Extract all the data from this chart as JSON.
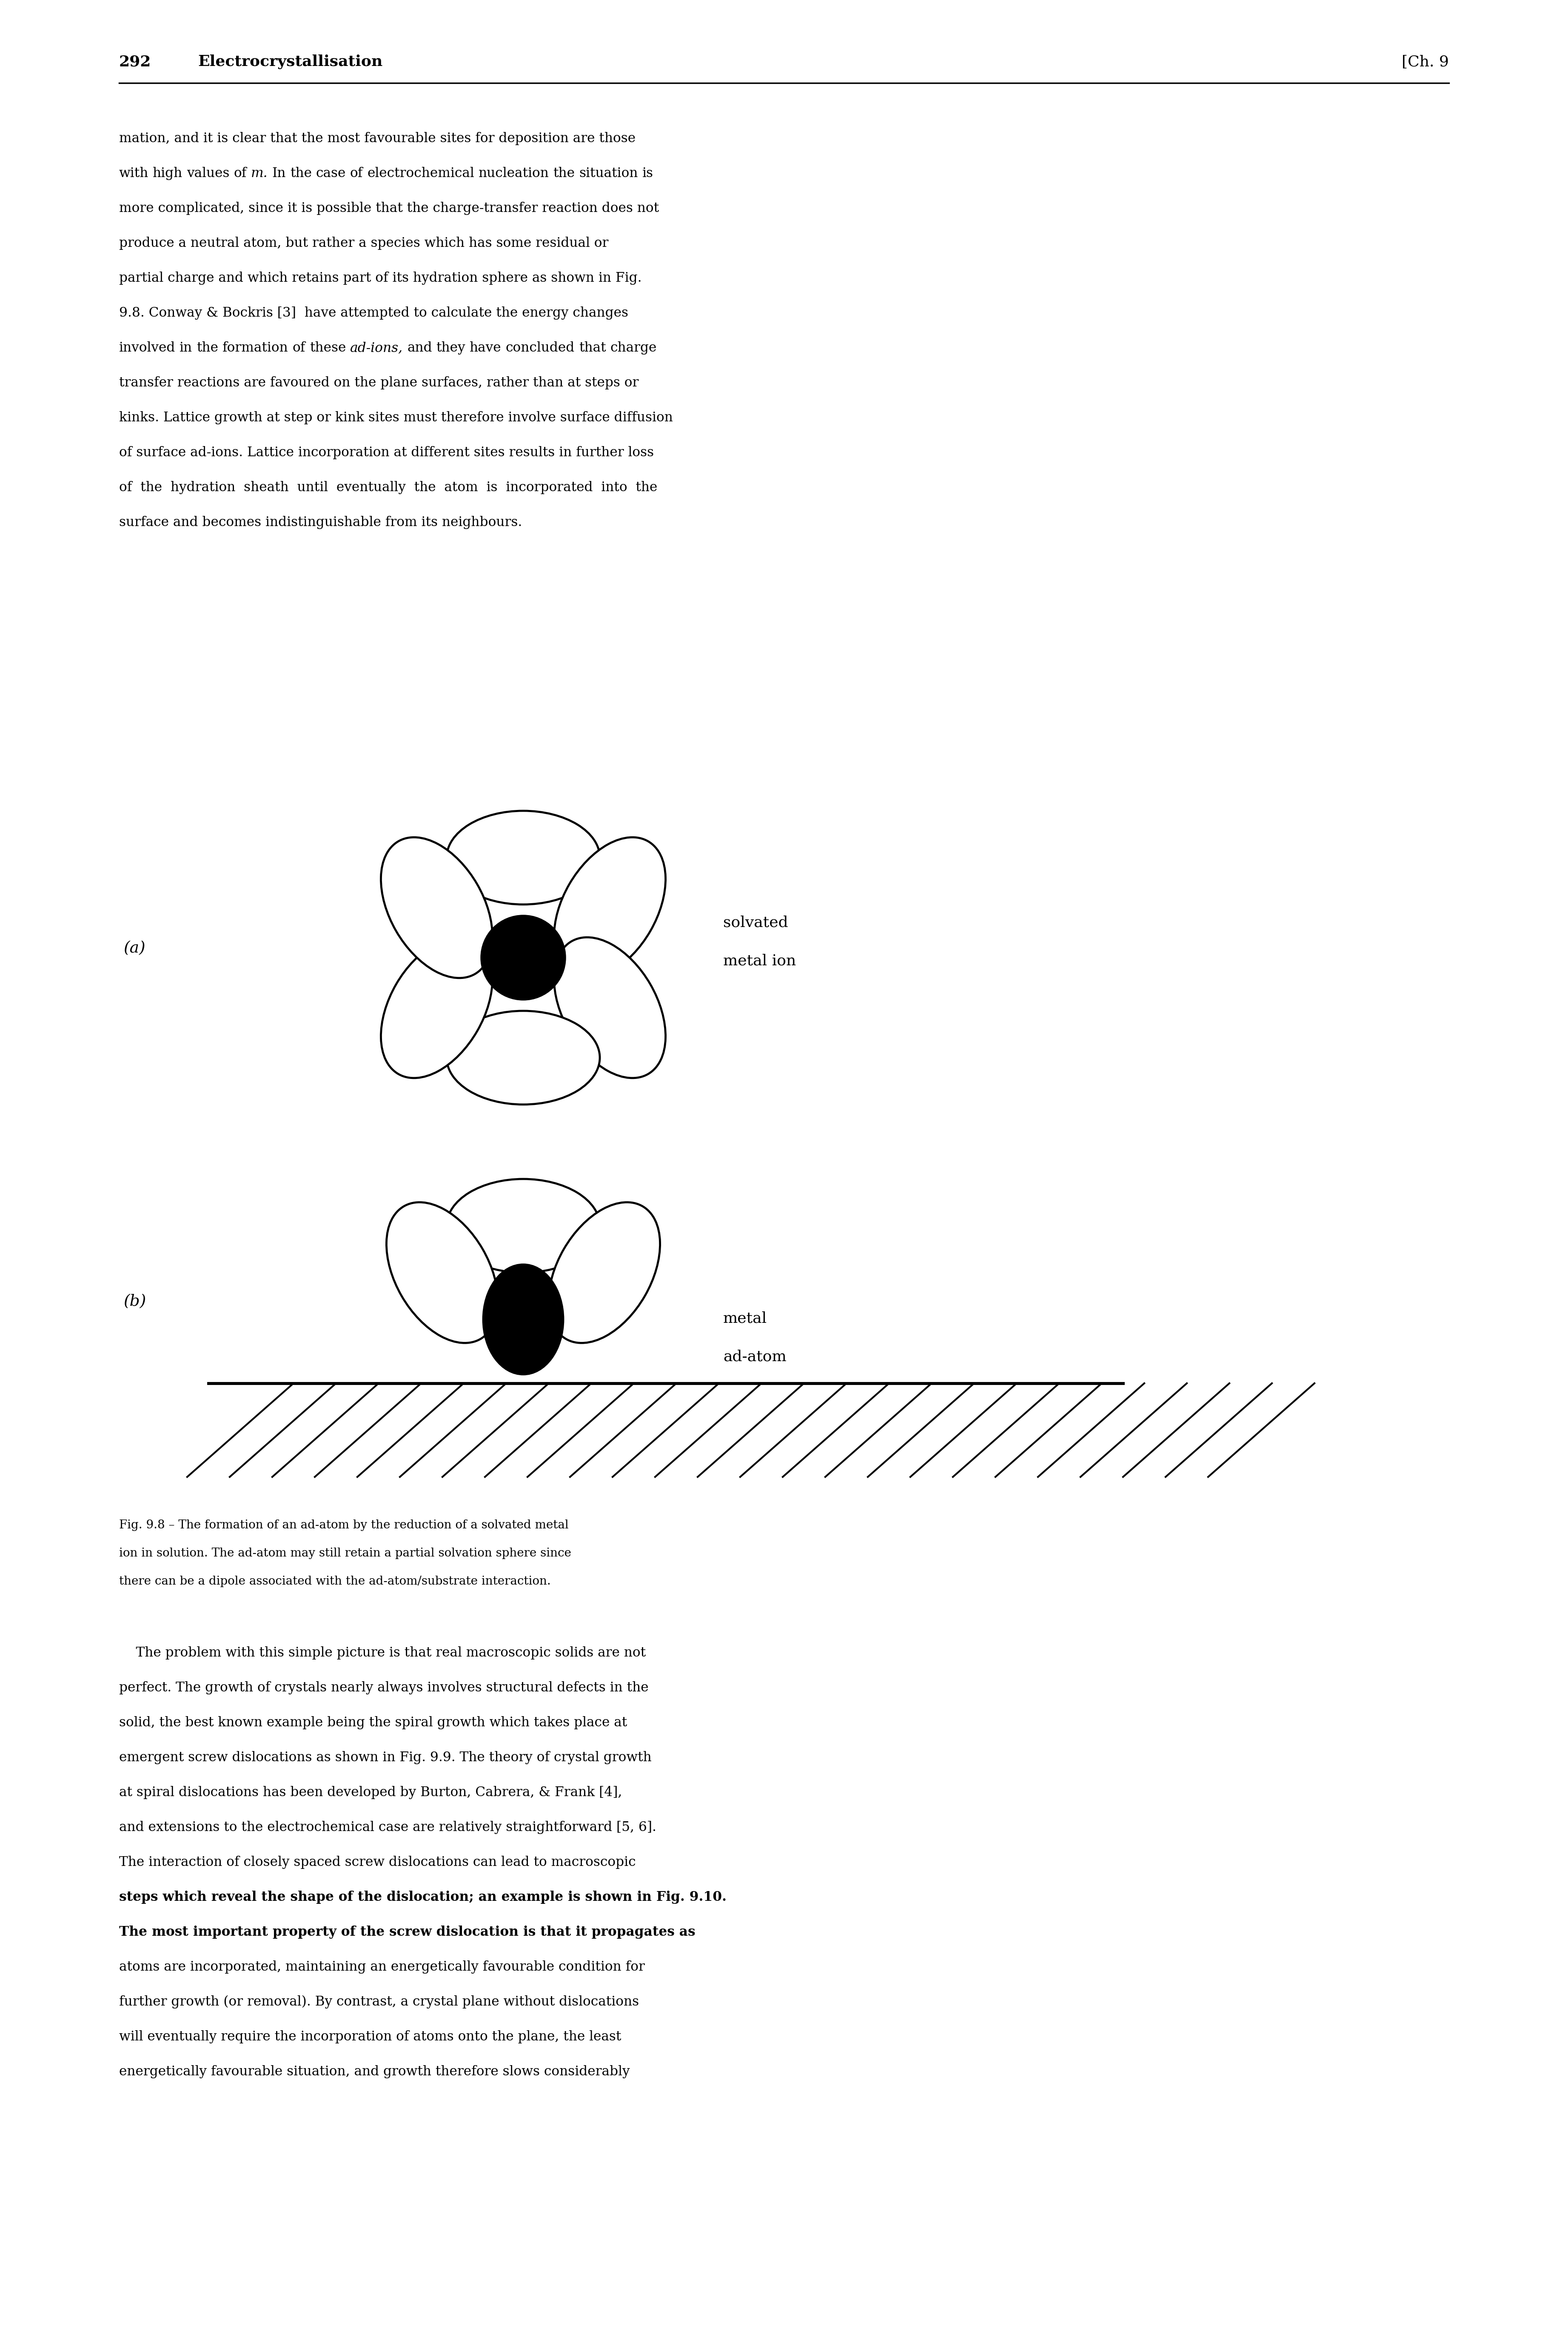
{
  "page_number": "292",
  "header_left": "Electrocrystallisation",
  "header_right": "[Ch. 9",
  "body_lines_1": [
    "mation, and it is clear that the most favourable sites for deposition are those",
    "with high values of __m__. In the case of electrochemical nucleation the situation is",
    "more complicated, since it is possible that the charge-transfer reaction does not",
    "produce  a  neutral  atom,  but  rather  a  species  which  has  some  residual  or",
    "partial  charge  and  which  retains  part  of  its  hydration  sphere  as  shown  in  Fig.",
    "9.8.  Conway  &  Bockris  [3]   have  attempted  to  calculate  the  energy  changes",
    "involved in the formation of these __ad-ions__, and they have concluded that charge",
    "transfer  reactions  are  favoured  on  the  plane  surfaces,  rather  than  at  steps  or",
    "kinks.  Lattice  growth  at  step  or  kink  sites  must  therefore  involve  surface  diffusion",
    "of  surface  ad-ions.  Lattice  incorporation  at  different  sites  results  in  further  loss",
    "of   the   hydration   sheath   until   eventually   the   atom   is   incorporated   into   the",
    "surface and becomes indistinguishable from its neighbours."
  ],
  "body_lines_1_plain": [
    "mation, and it is clear that the most favourable sites for deposition are those",
    "with high values of m. In the case of electrochemical nucleation the situation is",
    "more complicated, since it is possible that the charge-transfer reaction does not",
    "produce a neutral atom, but rather a species which has some residual or",
    "partial charge and which retains part of its hydration sphere as shown in Fig.",
    "9.8. Conway & Bockris [3]  have attempted to calculate the energy changes",
    "involved in the formation of these ad-ions, and they have concluded that charge",
    "transfer reactions are favoured on the plane surfaces, rather than at steps or",
    "kinks. Lattice growth at step or kink sites must therefore involve surface diffusion",
    "of surface ad-ions. Lattice incorporation at different sites results in further loss",
    "of  the  hydration  sheath  until  eventually  the  atom  is  incorporated  into  the",
    "surface and becomes indistinguishable from its neighbours."
  ],
  "italic_words_line6": [
    "ad-ions"
  ],
  "italic_words_line1": [
    "m"
  ],
  "label_a": "(a)",
  "label_b": "(b)",
  "label_solvated_1": "solvated",
  "label_solvated_2": "metal ion",
  "label_metal_1": "metal",
  "label_metal_2": "ad-atom",
  "fig_caption_lines": [
    "Fig. 9.8 – The formation of an ad-atom by the reduction of a solvated metal",
    "ion in solution. The ad-atom may still retain a partial solvation sphere since",
    "there can be a dipole associated with the ad-atom/substrate interaction."
  ],
  "body_lines_2": [
    "    The problem with this simple picture is that real macroscopic solids are not",
    "perfect. The growth of crystals nearly always involves structural defects in the",
    "solid, the best known example being the spiral growth which takes place at",
    "emergent screw dislocations as shown in Fig. 9.9. The theory of crystal growth",
    "at spiral dislocations has been developed by Burton, Cabrera, & Frank [4],",
    "and extensions to the electrochemical case are relatively straightforward [5, 6].",
    "The interaction of closely spaced screw dislocations can lead to macroscopic",
    "steps which reveal the shape of the dislocation; an example is shown in Fig. 9.10.",
    "The most important property of the screw dislocation is that it propagates as",
    "atoms are incorporated, maintaining an energetically favourable condition for",
    "further growth (or removal). By contrast, a crystal plane without dislocations",
    "will eventually require the incorporation of atoms onto the plane, the least",
    "energetically favourable situation, and growth therefore slows considerably"
  ],
  "bold_lines_2": [
    7,
    8
  ],
  "bg_color": "#ffffff",
  "text_color": "#000000"
}
